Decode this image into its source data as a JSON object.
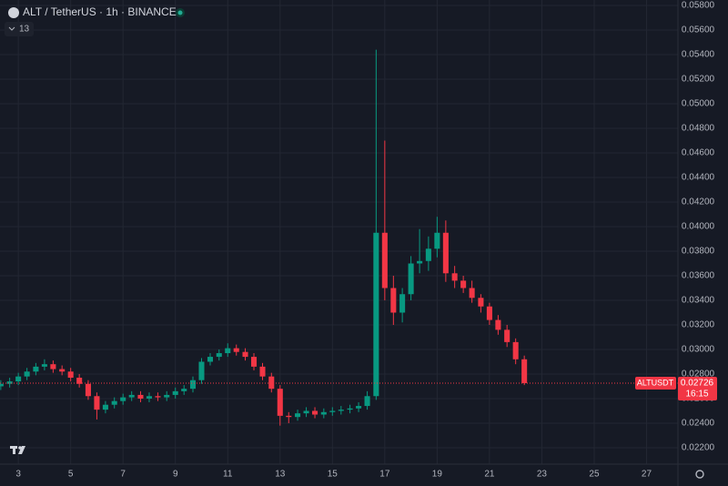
{
  "chart_data": {
    "type": "candlestick",
    "title": "ALT / TetherUS · 1h · BINANCE",
    "indicator_count": 13,
    "up_color": "#089981",
    "down_color": "#f23645",
    "grid": true,
    "x": [
      2.33,
      2.67,
      3,
      3.33,
      3.67,
      4,
      4.33,
      4.67,
      5,
      5.33,
      5.67,
      6,
      6.33,
      6.67,
      7,
      7.33,
      7.67,
      8,
      8.33,
      8.67,
      9,
      9.33,
      9.67,
      10,
      10.33,
      10.67,
      11,
      11.33,
      11.67,
      12,
      12.33,
      12.67,
      13,
      13.33,
      13.67,
      14,
      14.33,
      14.67,
      15,
      15.33,
      15.67,
      16,
      16.33,
      16.67,
      17,
      17.33,
      17.67,
      18,
      18.33,
      18.67,
      19,
      19.33,
      19.67,
      20,
      20.33,
      20.67,
      21,
      21.33,
      21.67,
      22,
      22.33
    ],
    "open": [
      0.027,
      0.0272,
      0.0274,
      0.0278,
      0.0282,
      0.0286,
      0.0288,
      0.0284,
      0.0282,
      0.0277,
      0.0272,
      0.0262,
      0.0251,
      0.0255,
      0.0258,
      0.0261,
      0.0263,
      0.026,
      0.0262,
      0.0261,
      0.0263,
      0.0266,
      0.0268,
      0.0275,
      0.029,
      0.0294,
      0.0297,
      0.0301,
      0.0298,
      0.0294,
      0.0286,
      0.0278,
      0.0268,
      0.0246,
      0.0245,
      0.0248,
      0.025,
      0.0247,
      0.0249,
      0.025,
      0.0251,
      0.0252,
      0.0254,
      0.0262,
      0.0395,
      0.035,
      0.033,
      0.0345,
      0.037,
      0.0372,
      0.0382,
      0.0395,
      0.0362,
      0.0356,
      0.035,
      0.0342,
      0.0335,
      0.0324,
      0.0316,
      0.0306,
      0.0292
    ],
    "high": [
      0.0275,
      0.0277,
      0.0281,
      0.0285,
      0.0289,
      0.0292,
      0.0291,
      0.0287,
      0.0285,
      0.028,
      0.0275,
      0.0265,
      0.0258,
      0.0261,
      0.0264,
      0.0266,
      0.0266,
      0.0265,
      0.0265,
      0.0266,
      0.0269,
      0.0271,
      0.0278,
      0.0293,
      0.0297,
      0.03,
      0.0305,
      0.0304,
      0.0301,
      0.0297,
      0.0289,
      0.0281,
      0.0271,
      0.0249,
      0.0251,
      0.0253,
      0.0253,
      0.0252,
      0.0253,
      0.0254,
      0.0255,
      0.0257,
      0.0266,
      0.0544,
      0.047,
      0.036,
      0.035,
      0.0376,
      0.0398,
      0.0392,
      0.0408,
      0.0405,
      0.0368,
      0.036,
      0.0356,
      0.0345,
      0.0338,
      0.0328,
      0.032,
      0.0309,
      0.0295
    ],
    "low": [
      0.0267,
      0.0269,
      0.0271,
      0.0275,
      0.0279,
      0.0283,
      0.0281,
      0.0279,
      0.0274,
      0.0269,
      0.0259,
      0.0243,
      0.0248,
      0.0252,
      0.0255,
      0.0258,
      0.0257,
      0.0257,
      0.0258,
      0.0258,
      0.026,
      0.0263,
      0.0265,
      0.0272,
      0.0287,
      0.0291,
      0.0294,
      0.0295,
      0.0291,
      0.0283,
      0.0275,
      0.0265,
      0.0238,
      0.024,
      0.0242,
      0.0245,
      0.0244,
      0.0244,
      0.0246,
      0.0247,
      0.0248,
      0.0249,
      0.0251,
      0.0259,
      0.034,
      0.032,
      0.0322,
      0.034,
      0.0362,
      0.0364,
      0.0375,
      0.0355,
      0.035,
      0.0346,
      0.0338,
      0.033,
      0.032,
      0.0312,
      0.0302,
      0.0288,
      0.0271
    ],
    "close": [
      0.0272,
      0.0274,
      0.0278,
      0.0282,
      0.0286,
      0.0288,
      0.0284,
      0.0282,
      0.0277,
      0.0272,
      0.0262,
      0.0251,
      0.0255,
      0.0258,
      0.0261,
      0.0263,
      0.026,
      0.0262,
      0.0261,
      0.0263,
      0.0266,
      0.0268,
      0.0275,
      0.029,
      0.0294,
      0.0297,
      0.0301,
      0.0298,
      0.0294,
      0.0286,
      0.0278,
      0.0268,
      0.0246,
      0.0245,
      0.0248,
      0.025,
      0.0247,
      0.0249,
      0.025,
      0.0251,
      0.0252,
      0.0254,
      0.0262,
      0.0395,
      0.035,
      0.033,
      0.0345,
      0.037,
      0.0372,
      0.0382,
      0.0395,
      0.0362,
      0.0356,
      0.035,
      0.0342,
      0.0335,
      0.0324,
      0.0316,
      0.0306,
      0.0292,
      0.02726
    ],
    "xlim": [
      2.3,
      28.2
    ],
    "xticks": [
      3,
      5,
      7,
      9,
      11,
      13,
      15,
      17,
      19,
      21,
      23,
      25,
      27
    ],
    "ylim": [
      0.0207,
      0.0583
    ],
    "yticks": [
      {
        "value": 0.022,
        "label": "0.02200"
      },
      {
        "value": 0.024,
        "label": "0.02400"
      },
      {
        "value": 0.026,
        "label": "0.02600"
      },
      {
        "value": 0.028,
        "label": "0.02800"
      },
      {
        "value": 0.03,
        "label": "0.03000"
      },
      {
        "value": 0.032,
        "label": "0.03200"
      },
      {
        "value": 0.034,
        "label": "0.03400"
      },
      {
        "value": 0.036,
        "label": "0.03600"
      },
      {
        "value": 0.038,
        "label": "0.03800"
      },
      {
        "value": 0.04,
        "label": "0.04000"
      },
      {
        "value": 0.042,
        "label": "0.04200"
      },
      {
        "value": 0.044,
        "label": "0.04400"
      },
      {
        "value": 0.046,
        "label": "0.04600"
      },
      {
        "value": 0.048,
        "label": "0.04800"
      },
      {
        "value": 0.05,
        "label": "0.05000"
      },
      {
        "value": 0.052,
        "label": "0.05200"
      },
      {
        "value": 0.054,
        "label": "0.05400"
      },
      {
        "value": 0.056,
        "label": "0.05600"
      },
      {
        "value": 0.058,
        "label": "0.05800"
      }
    ],
    "last_price": {
      "symbol": "ALTUSDT",
      "value": 0.02726,
      "countdown": "16:15"
    }
  }
}
